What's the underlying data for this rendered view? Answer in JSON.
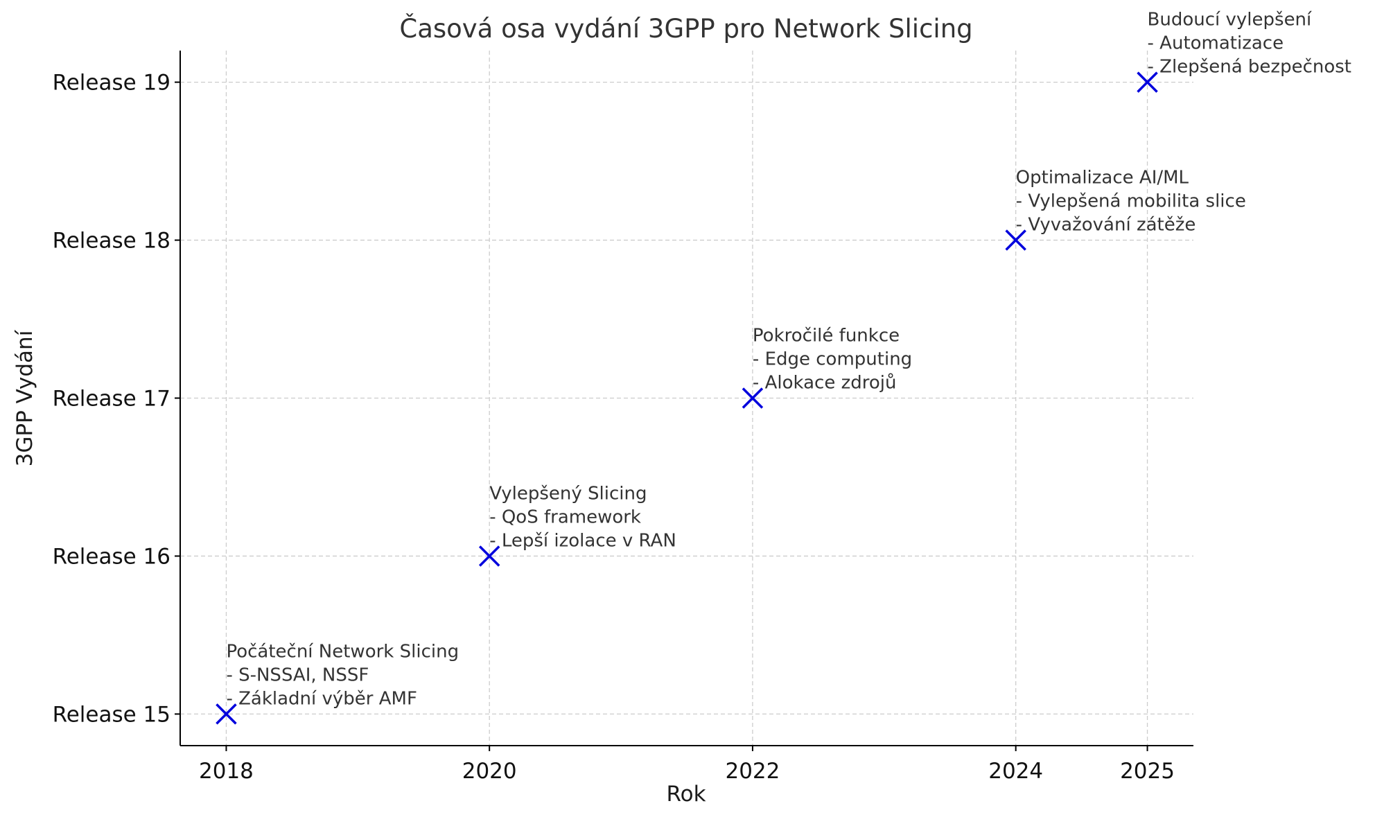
{
  "chart_data": {
    "type": "scatter",
    "title": "Časová osa vydání 3GPP pro Network Slicing",
    "xlabel": "Rok",
    "ylabel": "3GPP Vydání",
    "x_ticks": [
      2018,
      2020,
      2022,
      2024,
      2025
    ],
    "y_ticks": [
      15,
      16,
      17,
      18,
      19
    ],
    "y_tick_labels": [
      "Release 15",
      "Release 16",
      "Release 17",
      "Release 18",
      "Release 19"
    ],
    "xlim": [
      2017.65,
      2025.35
    ],
    "ylim": [
      14.8,
      19.2
    ],
    "grid": true,
    "marker": "x",
    "marker_color": "#0000dd",
    "points": [
      {
        "x": 2018,
        "y": 15,
        "annotation": [
          "Počáteční Network Slicing",
          "- S-NSSAI, NSSF",
          "- Základní výběr AMF"
        ]
      },
      {
        "x": 2020,
        "y": 16,
        "annotation": [
          "Vylepšený Slicing",
          "- QoS framework",
          "- Lepší izolace v RAN"
        ]
      },
      {
        "x": 2022,
        "y": 17,
        "annotation": [
          "Pokročilé funkce",
          "- Edge computing",
          "- Alokace zdrojů"
        ]
      },
      {
        "x": 2024,
        "y": 18,
        "annotation": [
          "Optimalizace AI/ML",
          "- Vylepšená mobilita slice",
          "- Vyvažování zátěže"
        ]
      },
      {
        "x": 2025,
        "y": 19,
        "annotation": [
          "Budoucí vylepšení",
          "- Automatizace",
          "- Zlepšená bezpečnost"
        ]
      }
    ]
  }
}
